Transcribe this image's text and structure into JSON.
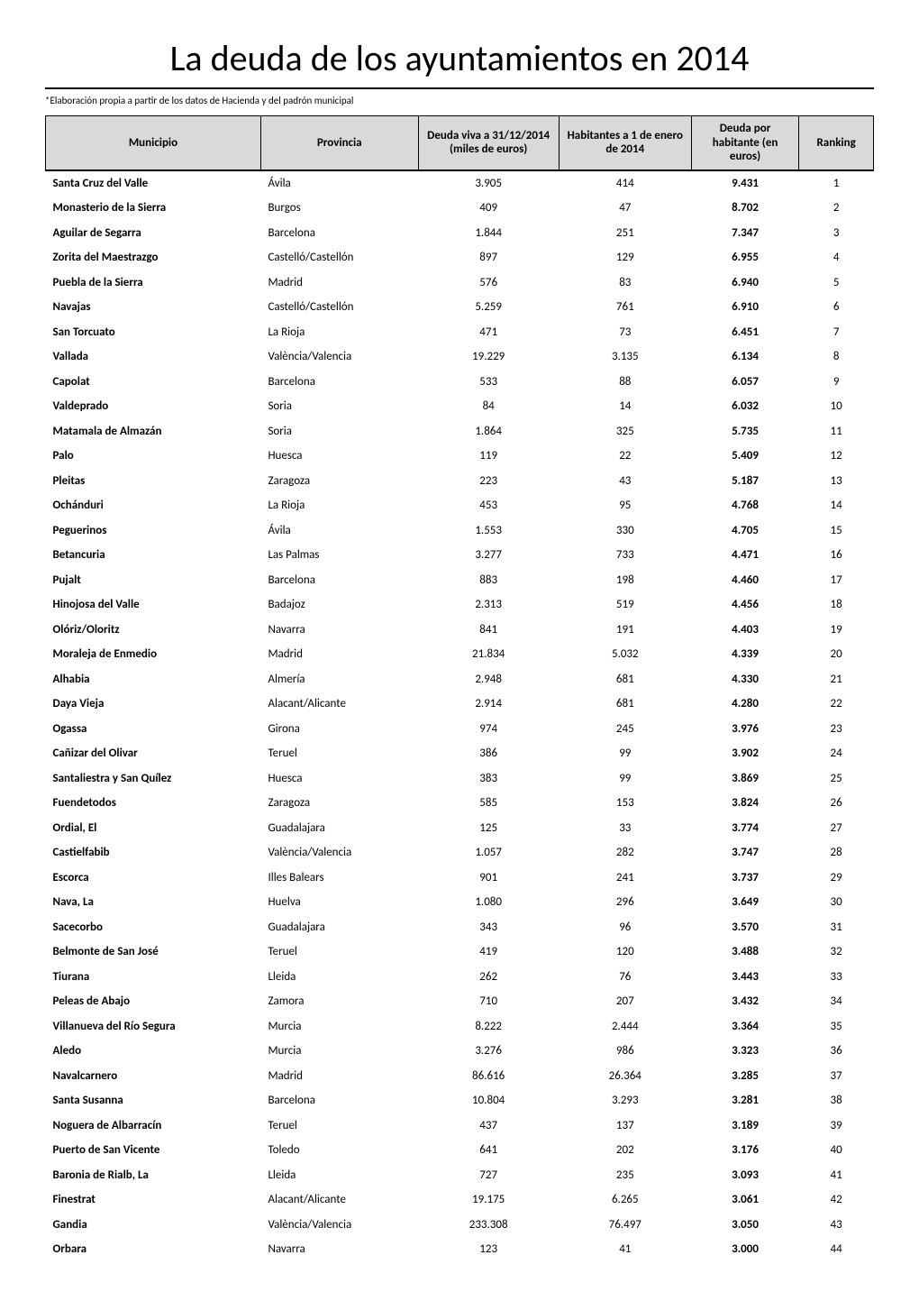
{
  "title": "La deuda de los ayuntamientos en 2014",
  "subtitle": "*Elaboración propia a partir de los datos de Hacienda y del padrón municipal",
  "columns": [
    "Municipio",
    "Provincia",
    "Deuda viva a 31/12/2014 (miles de euros)",
    "Habitantes a 1 de enero de 2014",
    "Deuda por habitante (en euros)",
    "Ranking"
  ],
  "rows": [
    [
      "Santa Cruz del Valle",
      "Ávila",
      "3.905",
      "414",
      "9.431",
      "1"
    ],
    [
      "Monasterio de la Sierra",
      "Burgos",
      "409",
      "47",
      "8.702",
      "2"
    ],
    [
      "Aguilar de Segarra",
      "Barcelona",
      "1.844",
      "251",
      "7.347",
      "3"
    ],
    [
      "Zorita del Maestrazgo",
      "Castelló/Castellón",
      "897",
      "129",
      "6.955",
      "4"
    ],
    [
      "Puebla de la Sierra",
      "Madrid",
      "576",
      "83",
      "6.940",
      "5"
    ],
    [
      "Navajas",
      "Castelló/Castellón",
      "5.259",
      "761",
      "6.910",
      "6"
    ],
    [
      "San Torcuato",
      "La Rioja",
      "471",
      "73",
      "6.451",
      "7"
    ],
    [
      "Vallada",
      "València/Valencia",
      "19.229",
      "3.135",
      "6.134",
      "8"
    ],
    [
      "Capolat",
      "Barcelona",
      "533",
      "88",
      "6.057",
      "9"
    ],
    [
      "Valdeprado",
      "Soria",
      "84",
      "14",
      "6.032",
      "10"
    ],
    [
      "Matamala de Almazán",
      "Soria",
      "1.864",
      "325",
      "5.735",
      "11"
    ],
    [
      "Palo",
      "Huesca",
      "119",
      "22",
      "5.409",
      "12"
    ],
    [
      "Pleitas",
      "Zaragoza",
      "223",
      "43",
      "5.187",
      "13"
    ],
    [
      "Ochánduri",
      "La Rioja",
      "453",
      "95",
      "4.768",
      "14"
    ],
    [
      "Peguerinos",
      "Ávila",
      "1.553",
      "330",
      "4.705",
      "15"
    ],
    [
      "Betancuria",
      "Las Palmas",
      "3.277",
      "733",
      "4.471",
      "16"
    ],
    [
      "Pujalt",
      "Barcelona",
      "883",
      "198",
      "4.460",
      "17"
    ],
    [
      "Hinojosa del Valle",
      "Badajoz",
      "2.313",
      "519",
      "4.456",
      "18"
    ],
    [
      "Olóriz/Oloritz",
      "Navarra",
      "841",
      "191",
      "4.403",
      "19"
    ],
    [
      "Moraleja de Enmedio",
      "Madrid",
      "21.834",
      "5.032",
      "4.339",
      "20"
    ],
    [
      "Alhabia",
      "Almería",
      "2.948",
      "681",
      "4.330",
      "21"
    ],
    [
      "Daya Vieja",
      "Alacant/Alicante",
      "2.914",
      "681",
      "4.280",
      "22"
    ],
    [
      "Ogassa",
      "Girona",
      "974",
      "245",
      "3.976",
      "23"
    ],
    [
      "Cañizar del Olivar",
      "Teruel",
      "386",
      "99",
      "3.902",
      "24"
    ],
    [
      "Santaliestra y San Quílez",
      "Huesca",
      "383",
      "99",
      "3.869",
      "25"
    ],
    [
      "Fuendetodos",
      "Zaragoza",
      "585",
      "153",
      "3.824",
      "26"
    ],
    [
      "Ordial, El",
      "Guadalajara",
      "125",
      "33",
      "3.774",
      "27"
    ],
    [
      "Castielfabib",
      "València/Valencia",
      "1.057",
      "282",
      "3.747",
      "28"
    ],
    [
      "Escorca",
      "Illes Balears",
      "901",
      "241",
      "3.737",
      "29"
    ],
    [
      "Nava, La",
      "Huelva",
      "1.080",
      "296",
      "3.649",
      "30"
    ],
    [
      "Sacecorbo",
      "Guadalajara",
      "343",
      "96",
      "3.570",
      "31"
    ],
    [
      "Belmonte de San José",
      "Teruel",
      "419",
      "120",
      "3.488",
      "32"
    ],
    [
      "Tiurana",
      "Lleida",
      "262",
      "76",
      "3.443",
      "33"
    ],
    [
      "Peleas de Abajo",
      "Zamora",
      "710",
      "207",
      "3.432",
      "34"
    ],
    [
      "Villanueva del Río Segura",
      "Murcia",
      "8.222",
      "2.444",
      "3.364",
      "35"
    ],
    [
      "Aledo",
      "Murcia",
      "3.276",
      "986",
      "3.323",
      "36"
    ],
    [
      "Navalcarnero",
      "Madrid",
      "86.616",
      "26.364",
      "3.285",
      "37"
    ],
    [
      "Santa Susanna",
      "Barcelona",
      "10.804",
      "3.293",
      "3.281",
      "38"
    ],
    [
      "Noguera de Albarracín",
      "Teruel",
      "437",
      "137",
      "3.189",
      "39"
    ],
    [
      "Puerto de San Vicente",
      "Toledo",
      "641",
      "202",
      "3.176",
      "40"
    ],
    [
      "Baronia de Rialb, La",
      "Lleida",
      "727",
      "235",
      "3.093",
      "41"
    ],
    [
      "Finestrat",
      "Alacant/Alicante",
      "19.175",
      "6.265",
      "3.061",
      "42"
    ],
    [
      "Gandia",
      "València/Valencia",
      "233.308",
      "76.497",
      "3.050",
      "43"
    ],
    [
      "Orbara",
      "Navarra",
      "123",
      "41",
      "3.000",
      "44"
    ]
  ],
  "styles": {
    "header_bg": "#d9d9d9",
    "border_color": "#000000",
    "title_fontsize": 40,
    "header_fontsize": 13,
    "body_fontsize": 13,
    "subtitle_fontsize": 11,
    "page_bg": "#ffffff",
    "text_color": "#000000"
  }
}
